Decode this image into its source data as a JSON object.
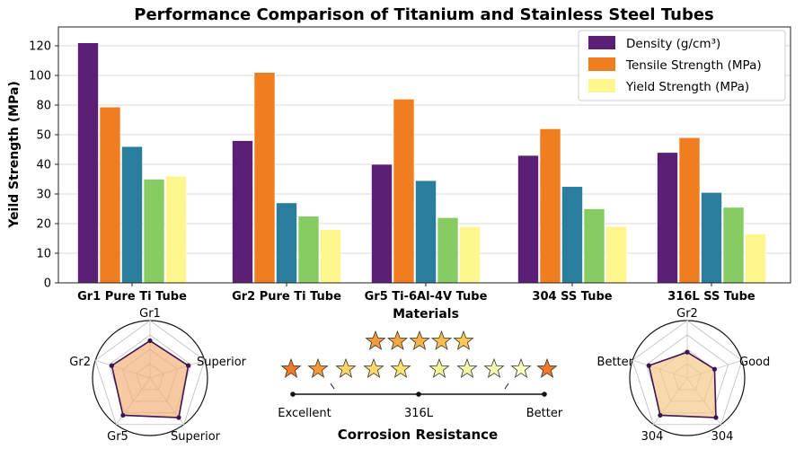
{
  "chart_data": [
    {
      "type": "bar",
      "title": "Performance Comparison of Titanium and Stainless Steel Tubes",
      "xlabel": "Materials",
      "ylabel": "Yeild Strength (MPa)",
      "y_ticks": [
        "0",
        "10",
        "20",
        "30",
        "40",
        "50",
        "80",
        "100",
        "120"
      ],
      "categories": [
        "Gr1 Pure Ti Tube",
        "Gr2 Pure Ti Tube",
        "Gr5 Ti-6Al-4V Tube",
        "304 SS Tube",
        "316L SS Tube"
      ],
      "legend_position": "top-right",
      "grid": true,
      "series": [
        {
          "name": "Density (g/cm³)",
          "color": "#5b1f75",
          "values": [
            122,
            48,
            40,
            43,
            44
          ]
        },
        {
          "name": "Tensile Strength (MPa)",
          "color": "#f07d1f",
          "values": [
            78,
            102,
            84,
            56,
            49
          ]
        },
        {
          "name": "",
          "color": "#2a7d9c",
          "values": [
            46,
            27,
            34.5,
            32.5,
            30.5
          ]
        },
        {
          "name": "",
          "color": "#86cc63",
          "values": [
            35,
            22.5,
            22,
            25,
            25.5
          ]
        },
        {
          "name": "Yield Strength (MPa)",
          "color": "#fff68f",
          "values": [
            36,
            18,
            19,
            19,
            16.5
          ]
        }
      ]
    },
    {
      "type": "radar",
      "title": "Gr1",
      "axis_labels": [
        "Gr1",
        "Superior",
        "Superior",
        "Gr5",
        "Gr2"
      ],
      "values": [
        0.65,
        0.7,
        0.85,
        0.8,
        0.7
      ],
      "fill_color": "#f2b27a",
      "line_color": "#3d1452"
    },
    {
      "type": "radar",
      "title": "Gr2",
      "axis_labels": [
        "Gr2",
        "Good",
        "304",
        "304",
        "Better"
      ],
      "values": [
        0.45,
        0.5,
        0.85,
        0.8,
        0.7
      ],
      "fill_color": "#f5c98a",
      "line_color": "#3d1452"
    },
    {
      "type": "rating-scale",
      "title": "Corrosion Resistance",
      "top_row_stars": 5,
      "bottom_row_stars": 10,
      "scale_labels": [
        "Excellent",
        "316L",
        "Better"
      ]
    }
  ]
}
